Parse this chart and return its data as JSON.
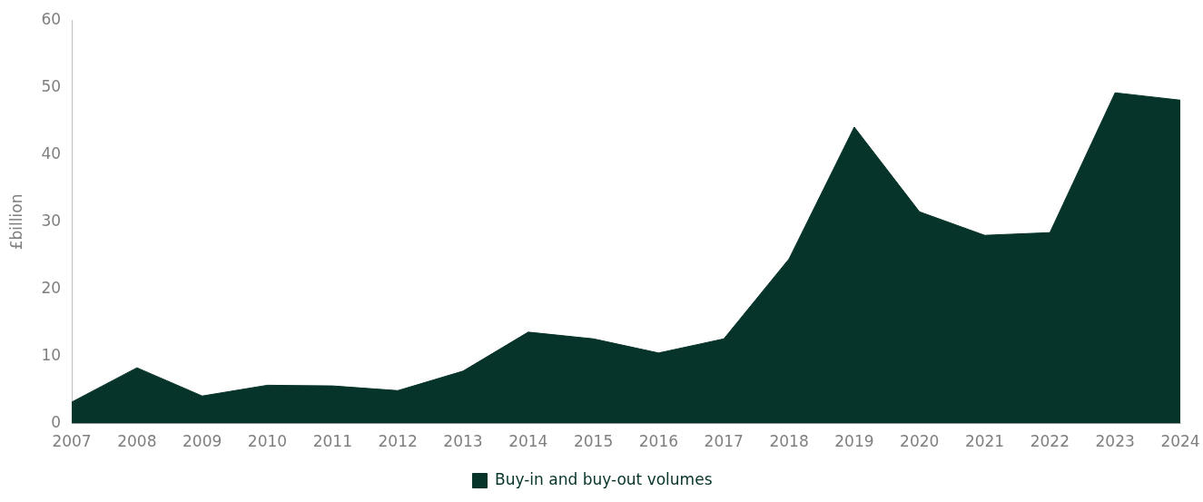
{
  "chart_data": {
    "type": "area",
    "ylabel": "£billion",
    "categories": [
      "2007",
      "2008",
      "2009",
      "2010",
      "2011",
      "2012",
      "2013",
      "2014",
      "2015",
      "2016",
      "2017",
      "2018",
      "2019",
      "2020",
      "2021",
      "2022",
      "2023",
      "2024"
    ],
    "series": [
      {
        "name": "Buy-in and buy-out volumes",
        "color": "#06332a",
        "values": [
          3.2,
          8.3,
          4.1,
          5.7,
          5.6,
          4.9,
          7.8,
          13.6,
          12.6,
          10.5,
          12.6,
          24.5,
          44.1,
          31.5,
          28.0,
          28.4,
          49.2,
          48.1
        ]
      }
    ],
    "ylim": [
      0,
      60
    ],
    "yticks": [
      0,
      10,
      20,
      30,
      40,
      50,
      60
    ],
    "grid": false,
    "legend": "bottom"
  }
}
